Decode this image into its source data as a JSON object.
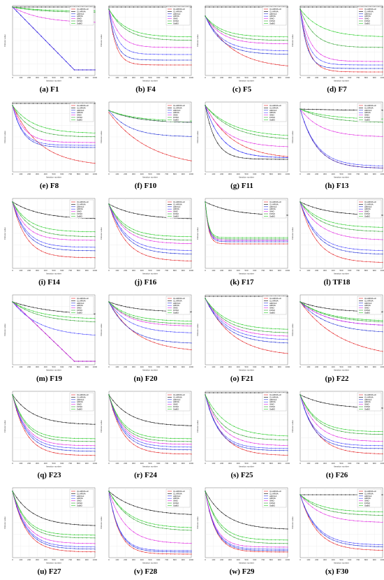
{
  "figure": {
    "legend_entries": [
      "CLARIVA-LF",
      "CLARIVA",
      "ARIVLF",
      "ARIVA",
      "SMO",
      "FFSO",
      "SaBO"
    ],
    "series_colors": [
      "#e41a1c",
      "#000000",
      "#1f2fd6",
      "#4040ff",
      "#e020e0",
      "#2ca02c",
      "#22cc22"
    ],
    "xlabel": "Iteration number",
    "ylabel": "Fitness value",
    "x_ticks": [
      "0",
      "100",
      "200",
      "300",
      "400",
      "500",
      "600",
      "700",
      "800",
      "900",
      "1000"
    ]
  },
  "chart_data": [
    {
      "letter": "(a)",
      "name": "F1",
      "type": "line"
    },
    {
      "letter": "(b)",
      "name": "F4",
      "type": "line"
    },
    {
      "letter": "(c)",
      "name": "F5",
      "type": "line"
    },
    {
      "letter": "(d)",
      "name": "F7",
      "type": "line"
    },
    {
      "letter": "(e)",
      "name": "F8",
      "type": "line"
    },
    {
      "letter": "(f)",
      "name": "F10",
      "type": "line"
    },
    {
      "letter": "(g)",
      "name": "F11",
      "type": "line"
    },
    {
      "letter": "(h)",
      "name": "F13",
      "type": "line"
    },
    {
      "letter": "(i)",
      "name": "F14",
      "type": "line"
    },
    {
      "letter": "(j)",
      "name": "F16",
      "type": "line"
    },
    {
      "letter": "(k)",
      "name": "F17",
      "type": "line"
    },
    {
      "letter": "(l)",
      "name": "TF18",
      "type": "line"
    },
    {
      "letter": "(m)",
      "name": "F19",
      "type": "line"
    },
    {
      "letter": "(n)",
      "name": "F20",
      "type": "line"
    },
    {
      "letter": "(o)",
      "name": "F21",
      "type": "line"
    },
    {
      "letter": "(p)",
      "name": "F22",
      "type": "line"
    },
    {
      "letter": "(q)",
      "name": "F23",
      "type": "line"
    },
    {
      "letter": "(r)",
      "name": "F24",
      "type": "line"
    },
    {
      "letter": "(s)",
      "name": "F25",
      "type": "line"
    },
    {
      "letter": "(t)",
      "name": "F26",
      "type": "line"
    },
    {
      "letter": "(u)",
      "name": "F27",
      "type": "line"
    },
    {
      "letter": "(v)",
      "name": "F28",
      "type": "line"
    },
    {
      "letter": "(w)",
      "name": "F29",
      "type": "line"
    },
    {
      "letter": "(x)",
      "name": "F30",
      "type": "line"
    }
  ]
}
